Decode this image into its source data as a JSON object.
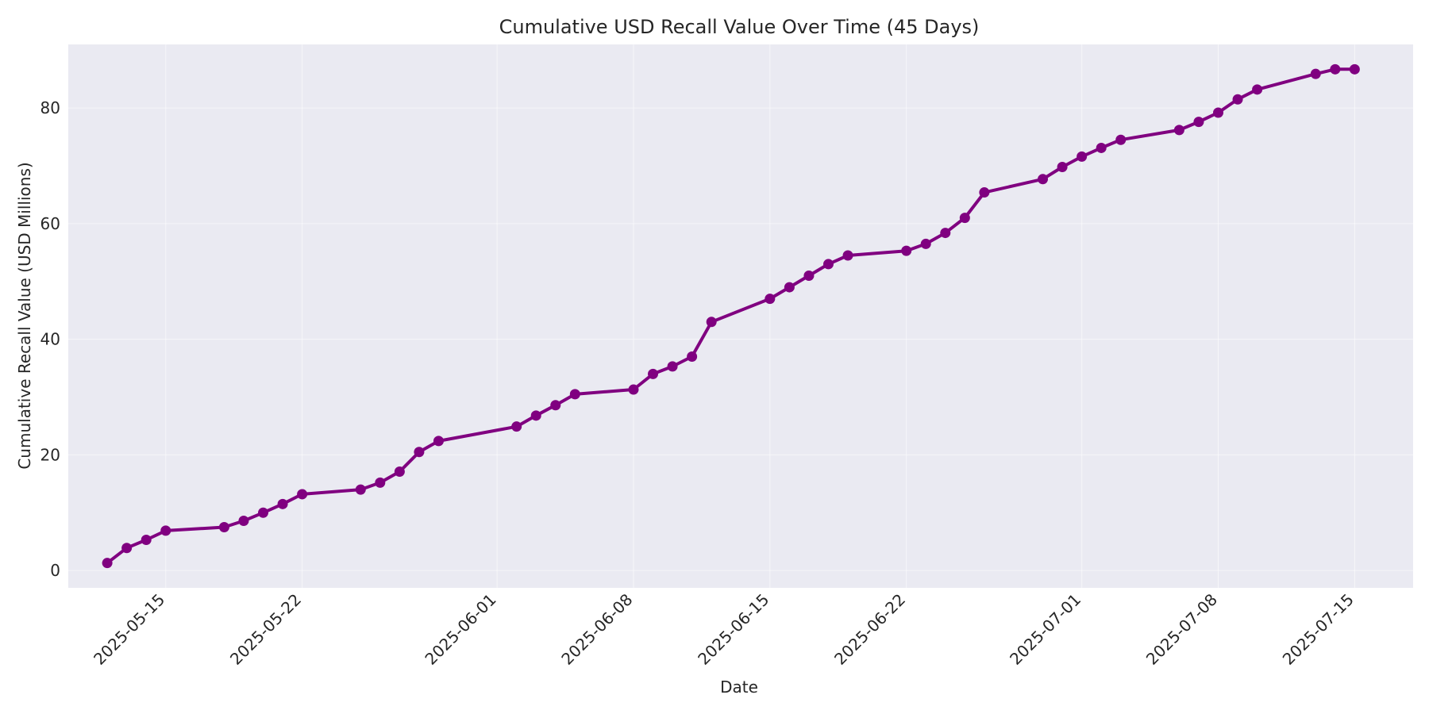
{
  "chart_data": {
    "type": "line",
    "title": "Cumulative USD Recall Value Over Time (45 Days)",
    "xlabel": "Date",
    "ylabel": "Cumulative Recall Value (USD Millions)",
    "xlim": [
      "2025-05-10",
      "2025-07-18"
    ],
    "ylim": [
      -3,
      91
    ],
    "grid": true,
    "x_ticks": [
      "2025-05-15",
      "2025-05-22",
      "2025-06-01",
      "2025-06-08",
      "2025-06-15",
      "2025-06-22",
      "2025-07-01",
      "2025-07-08",
      "2025-07-15"
    ],
    "y_ticks": [
      0,
      20,
      40,
      60,
      80
    ],
    "colors": {
      "series": "#800080",
      "plot_background": "#eaeaf2",
      "grid": "#ffffff"
    },
    "series": [
      {
        "x": [
          "2025-05-12",
          "2025-05-13",
          "2025-05-14",
          "2025-05-15",
          "2025-05-18",
          "2025-05-19",
          "2025-05-20",
          "2025-05-21",
          "2025-05-22",
          "2025-05-25",
          "2025-05-26",
          "2025-05-27",
          "2025-05-28",
          "2025-05-29",
          "2025-06-02",
          "2025-06-03",
          "2025-06-04",
          "2025-06-05",
          "2025-06-08",
          "2025-06-09",
          "2025-06-10",
          "2025-06-11",
          "2025-06-12",
          "2025-06-15",
          "2025-06-16",
          "2025-06-17",
          "2025-06-18",
          "2025-06-19",
          "2025-06-22",
          "2025-06-23",
          "2025-06-24",
          "2025-06-25",
          "2025-06-26",
          "2025-06-29",
          "2025-06-30",
          "2025-07-01",
          "2025-07-02",
          "2025-07-03",
          "2025-07-06",
          "2025-07-07",
          "2025-07-08",
          "2025-07-09",
          "2025-07-10",
          "2025-07-13",
          "2025-07-14",
          "2025-07-15"
        ],
        "values": [
          1.3,
          3.9,
          5.3,
          6.9,
          7.5,
          8.6,
          10.0,
          11.5,
          13.2,
          14.0,
          15.2,
          17.1,
          20.5,
          22.4,
          24.9,
          26.8,
          28.6,
          30.5,
          31.3,
          34.0,
          35.3,
          37.0,
          43.0,
          47.0,
          49.0,
          51.0,
          53.0,
          54.5,
          55.3,
          56.5,
          58.4,
          61.0,
          65.4,
          67.7,
          69.8,
          71.6,
          73.1,
          74.5,
          76.2,
          77.6,
          79.2,
          81.5,
          83.2,
          85.9,
          86.7,
          86.7
        ]
      }
    ]
  }
}
